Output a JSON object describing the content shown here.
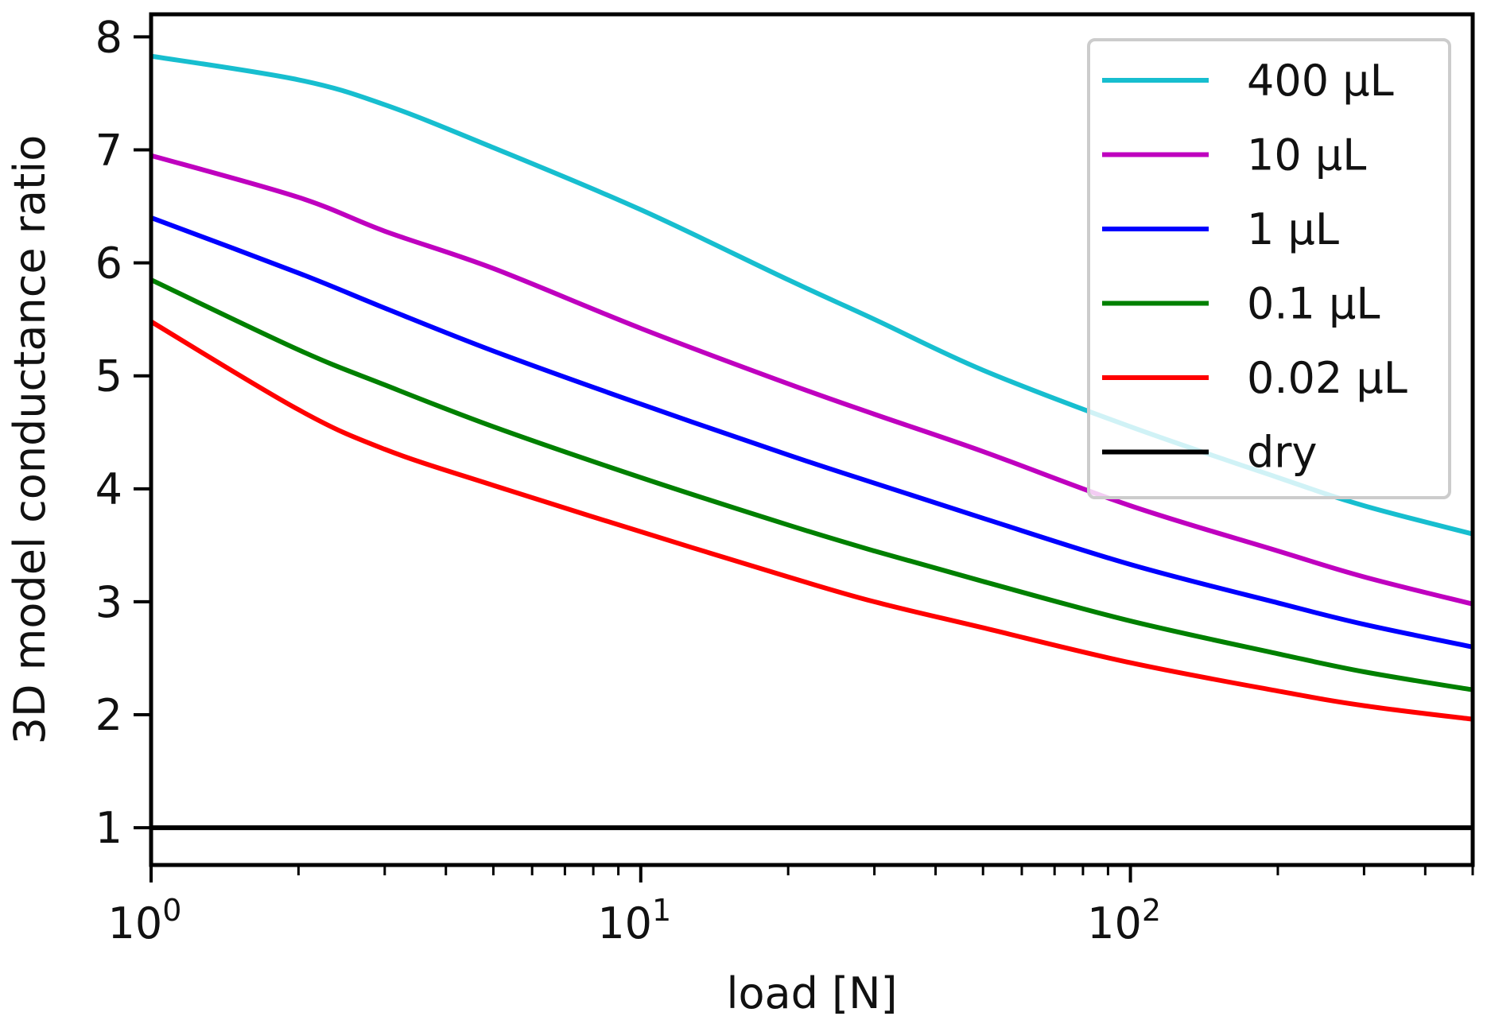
{
  "chart_data": {
    "type": "line",
    "xscale": "log",
    "xlabel": "load [N]",
    "ylabel": "3D model conductance ratio",
    "xlim": [
      1,
      500
    ],
    "ylim": [
      0.67,
      8.2
    ],
    "x_ticks": [
      {
        "value": 1,
        "base": "10",
        "exp": "0"
      },
      {
        "value": 10,
        "base": "10",
        "exp": "1"
      },
      {
        "value": 100,
        "base": "10",
        "exp": "2"
      }
    ],
    "y_ticks": [
      {
        "value": 1,
        "label": "1"
      },
      {
        "value": 2,
        "label": "2"
      },
      {
        "value": 3,
        "label": "3"
      },
      {
        "value": 4,
        "label": "4"
      },
      {
        "value": 5,
        "label": "5"
      },
      {
        "value": 6,
        "label": "6"
      },
      {
        "value": 7,
        "label": "7"
      },
      {
        "value": 8,
        "label": "8"
      }
    ],
    "legend_position": "top-right",
    "series": [
      {
        "name": "400 μL",
        "color": "#17becf",
        "x": [
          1,
          2,
          3,
          5,
          10,
          20,
          30,
          50,
          100,
          200,
          300,
          500
        ],
        "y": [
          7.83,
          7.62,
          7.4,
          7.02,
          6.47,
          5.85,
          5.5,
          5.05,
          4.55,
          4.1,
          3.85,
          3.6
        ]
      },
      {
        "name": "10 μL",
        "color": "#bf00bf",
        "x": [
          1,
          2,
          3,
          5,
          10,
          20,
          30,
          50,
          100,
          200,
          300,
          500
        ],
        "y": [
          6.95,
          6.58,
          6.28,
          5.95,
          5.42,
          4.93,
          4.66,
          4.33,
          3.85,
          3.45,
          3.22,
          2.98
        ]
      },
      {
        "name": "1 μL",
        "color": "#0000ff",
        "x": [
          1,
          2,
          3,
          5,
          10,
          20,
          30,
          50,
          100,
          200,
          300,
          500
        ],
        "y": [
          6.4,
          5.91,
          5.6,
          5.22,
          4.75,
          4.3,
          4.05,
          3.74,
          3.33,
          2.99,
          2.8,
          2.6
        ]
      },
      {
        "name": "0.1 μL",
        "color": "#008000",
        "x": [
          1,
          2,
          3,
          5,
          10,
          20,
          30,
          50,
          100,
          200,
          300,
          500
        ],
        "y": [
          5.85,
          5.23,
          4.92,
          4.55,
          4.1,
          3.68,
          3.45,
          3.18,
          2.83,
          2.54,
          2.38,
          2.22
        ]
      },
      {
        "name": "0.02 μL",
        "color": "#ff0000",
        "x": [
          1,
          2,
          3,
          5,
          10,
          20,
          30,
          50,
          100,
          200,
          300,
          500
        ],
        "y": [
          5.48,
          4.7,
          4.35,
          4.03,
          3.62,
          3.22,
          3.0,
          2.77,
          2.46,
          2.21,
          2.08,
          1.96
        ]
      },
      {
        "name": "dry",
        "color": "#000000",
        "x": [
          1,
          500
        ],
        "y": [
          1.0,
          1.0
        ]
      }
    ]
  }
}
